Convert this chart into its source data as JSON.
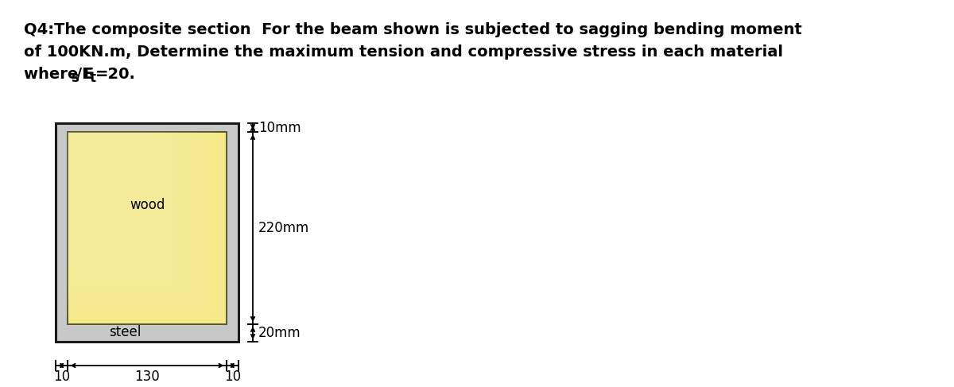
{
  "title_line1": "Q4:The composite section  For the beam shown is subjected to sagging bending moment",
  "title_line2": "of 100KN.m, Determine the maximum tension and compressive stress in each material",
  "title_line3_pre": "where E",
  "title_sub_s": "s",
  "title_line3_mid": "/E",
  "title_sub_t": "t",
  "title_line3_post": "=20.",
  "bg_color": "#ffffff",
  "outer_fill": "#c8c8c8",
  "outer_edge": "#1a1a1a",
  "wood_fill": "#f5e882",
  "wood_edge": "#4a4a20",
  "wood_label": "wood",
  "steel_label": "steel",
  "dim_10mm_top": "10mm",
  "dim_220mm": "220mm",
  "dim_20mm": "20mm",
  "dim_10_left": "10",
  "dim_130": "130",
  "dim_10_right": "10",
  "title_fontsize": 14,
  "label_fontsize": 12,
  "dim_fontsize": 12
}
